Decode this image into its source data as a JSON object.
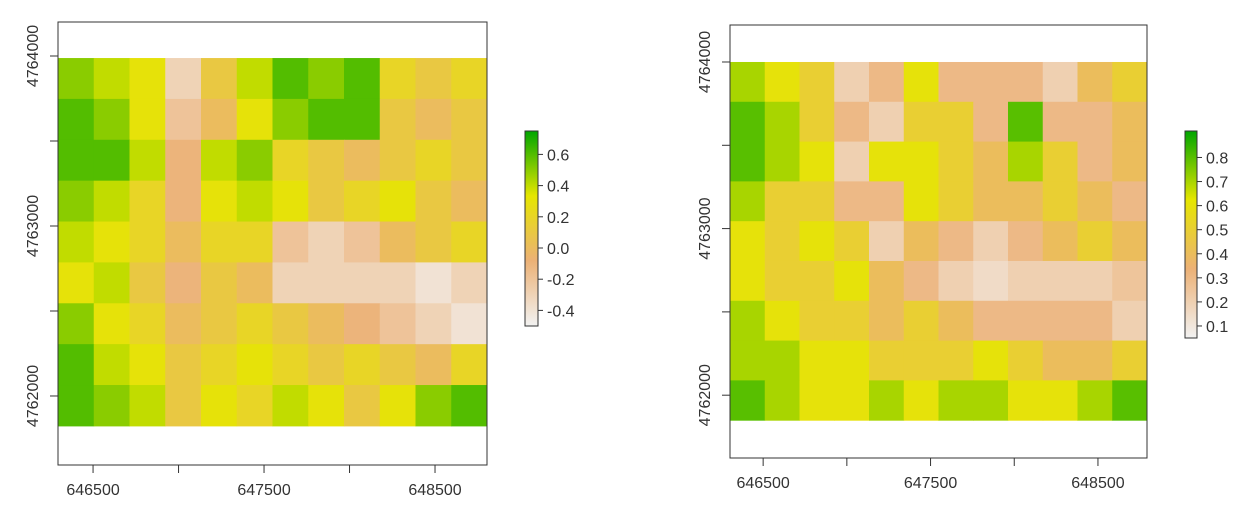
{
  "chart_data": [
    {
      "type": "raster",
      "xlim": [
        646295,
        648804
      ],
      "ylim": [
        4761594,
        4764200
      ],
      "raster_xlim": [
        646295,
        648804
      ],
      "raster_ylim": [
        4761824,
        4763988
      ],
      "xticks": [
        646500,
        647500,
        648500
      ],
      "xminor_ticks": [
        647000,
        648000
      ],
      "yticks": [
        4762000,
        4763000,
        4764000
      ],
      "yminor_ticks": [
        4762500,
        4763500
      ],
      "zlim": [
        -0.5,
        0.75
      ],
      "zticks": [
        -0.4,
        -0.2,
        {
          "value": 0,
          "label": "0.0"
        },
        0.2,
        0.4,
        0.6
      ],
      "colors": [
        "#F2F2F2",
        "#ECB176",
        "#E6E600",
        "#00A600"
      ],
      "values": [
        [
          0.5,
          0.4,
          0.3,
          -0.3,
          0.1,
          0.4,
          0.6,
          0.5,
          0.6,
          0.2,
          0.1,
          0.2
        ],
        [
          0.6,
          0.5,
          0.3,
          -0.2,
          0.0,
          0.3,
          0.5,
          0.6,
          0.6,
          0.1,
          0.0,
          0.1
        ],
        [
          0.6,
          0.6,
          0.4,
          -0.1,
          0.4,
          0.5,
          0.2,
          0.1,
          0.0,
          0.1,
          0.2,
          0.1
        ],
        [
          0.5,
          0.4,
          0.2,
          -0.1,
          0.3,
          0.4,
          0.3,
          0.1,
          0.2,
          0.3,
          0.1,
          0.0
        ],
        [
          0.4,
          0.3,
          0.2,
          0.0,
          0.2,
          0.2,
          -0.2,
          -0.3,
          -0.2,
          0.0,
          0.1,
          0.2
        ],
        [
          0.3,
          0.4,
          0.1,
          -0.1,
          0.1,
          0.0,
          -0.3,
          -0.3,
          -0.3,
          -0.3,
          -0.4,
          -0.3
        ],
        [
          0.5,
          0.3,
          0.2,
          0.0,
          0.1,
          0.2,
          0.1,
          0.0,
          -0.1,
          -0.2,
          -0.3,
          -0.4
        ],
        [
          0.6,
          0.4,
          0.3,
          0.1,
          0.2,
          0.3,
          0.2,
          0.1,
          0.2,
          0.1,
          0.0,
          0.2
        ],
        [
          0.6,
          0.5,
          0.4,
          0.1,
          0.3,
          0.2,
          0.4,
          0.3,
          0.1,
          0.3,
          0.5,
          0.6
        ]
      ]
    },
    {
      "type": "raster",
      "xlim": [
        646302,
        648793
      ],
      "ylim": [
        4761623,
        4764222
      ],
      "raster_xlim": [
        646302,
        648793
      ],
      "raster_ylim": [
        4761850,
        4764000
      ],
      "xticks": [
        646500,
        647500,
        648500
      ],
      "xminor_ticks": [
        647000,
        648000
      ],
      "yticks": [
        4762000,
        4763000,
        4764000
      ],
      "yminor_ticks": [
        4762500,
        4763500
      ],
      "zlim": [
        0.05,
        0.91
      ],
      "zticks": [
        0.1,
        0.2,
        0.3,
        0.4,
        0.5,
        0.6,
        0.7,
        0.8
      ],
      "colors": [
        "#F2F2F2",
        "#ECB176",
        "#E6E600",
        "#00A600"
      ],
      "values": [
        [
          0.7,
          0.6,
          0.5,
          0.2,
          0.3,
          0.6,
          0.3,
          0.3,
          0.3,
          0.2,
          0.4,
          0.5
        ],
        [
          0.8,
          0.7,
          0.5,
          0.3,
          0.2,
          0.5,
          0.5,
          0.3,
          0.8,
          0.3,
          0.3,
          0.4
        ],
        [
          0.8,
          0.7,
          0.6,
          0.2,
          0.6,
          0.6,
          0.5,
          0.4,
          0.7,
          0.5,
          0.3,
          0.4
        ],
        [
          0.7,
          0.5,
          0.5,
          0.3,
          0.3,
          0.6,
          0.5,
          0.4,
          0.4,
          0.5,
          0.4,
          0.3
        ],
        [
          0.6,
          0.5,
          0.6,
          0.5,
          0.2,
          0.4,
          0.3,
          0.2,
          0.3,
          0.4,
          0.5,
          0.4
        ],
        [
          0.6,
          0.5,
          0.5,
          0.6,
          0.4,
          0.3,
          0.2,
          0.15,
          0.2,
          0.2,
          0.2,
          0.25
        ],
        [
          0.7,
          0.6,
          0.5,
          0.5,
          0.4,
          0.5,
          0.4,
          0.3,
          0.3,
          0.3,
          0.3,
          0.2
        ],
        [
          0.7,
          0.7,
          0.6,
          0.6,
          0.5,
          0.5,
          0.5,
          0.6,
          0.5,
          0.4,
          0.4,
          0.5
        ],
        [
          0.8,
          0.7,
          0.6,
          0.6,
          0.7,
          0.6,
          0.7,
          0.7,
          0.6,
          0.6,
          0.7,
          0.8
        ]
      ]
    }
  ]
}
